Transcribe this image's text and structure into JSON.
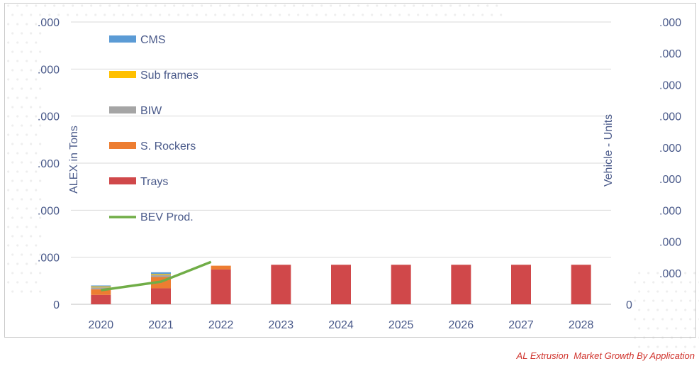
{
  "chart_data": {
    "type": "bar",
    "stacked": true,
    "categories": [
      "2020",
      "2021",
      "2022",
      "2023",
      "2024",
      "2025",
      "2026",
      "2027",
      "2028"
    ],
    "series": [
      {
        "name": "Trays",
        "color": "#d0484a",
        "values": [
          10,
          17,
          37,
          42,
          42,
          42,
          42,
          42,
          42
        ]
      },
      {
        "name": "S. Rockers",
        "color": "#ed7d31",
        "values": [
          6,
          12,
          4,
          0,
          0,
          0,
          0,
          0,
          0
        ]
      },
      {
        "name": "BIW",
        "color": "#a5a5a5",
        "values": [
          2,
          2,
          0,
          0,
          0,
          0,
          0,
          0,
          0
        ]
      },
      {
        "name": "Sub frames",
        "color": "#ffc000",
        "values": [
          1,
          1,
          0,
          0,
          0,
          0,
          0,
          0,
          0
        ]
      },
      {
        "name": "CMS",
        "color": "#5b9bd5",
        "values": [
          1,
          2,
          0,
          0,
          0,
          0,
          0,
          0,
          0
        ]
      }
    ],
    "line_series": {
      "name": "BEV Prod.",
      "color": "#70ad47",
      "values": [
        15,
        24,
        45
      ]
    },
    "ylabel": "ALEX in Tons",
    "y2label": "Vehicle - Units",
    "ylim": [
      0,
      300
    ],
    "yticks_left": [
      ".000",
      ".000",
      ".000",
      ".000",
      ".000",
      ".000",
      "0"
    ],
    "yticks_right": [
      ".000",
      ".000",
      ".000",
      ".000",
      ".000",
      ".000",
      ".000",
      ".000",
      ".000",
      "0"
    ],
    "grid": true,
    "legend_position": "left-inside"
  },
  "caption": "AL Extrusion  Market Growth By Application"
}
